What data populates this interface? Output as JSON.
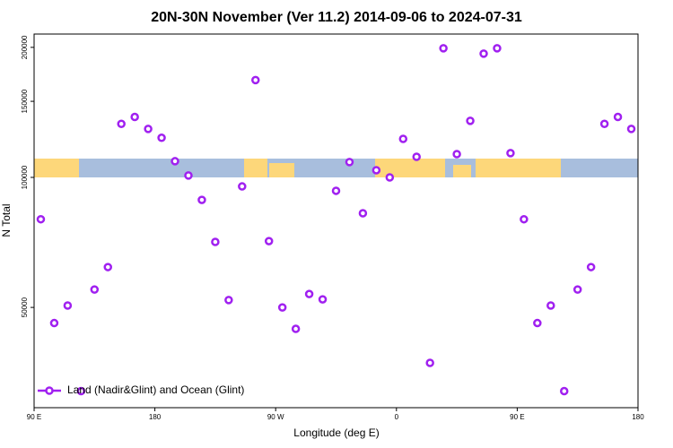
{
  "chart_data": {
    "type": "scatter",
    "title": "20N-30N November (Ver 11.2)   2014-09-06 to 2024-07-31",
    "x_label": "Longitude (deg E)",
    "y_label": "N Total",
    "x": [
      95,
      105,
      115,
      125,
      135,
      145,
      155,
      165,
      175,
      185,
      195,
      205,
      215,
      225,
      235,
      245,
      255,
      265,
      275,
      285,
      295,
      305,
      315,
      325,
      335,
      345,
      355,
      365,
      375,
      385,
      395,
      405,
      415,
      425,
      435,
      445,
      455,
      465,
      475,
      485,
      495,
      505,
      515,
      525,
      535
    ],
    "series": [
      {
        "name": "Land (Nadir&Glint) and Ocean (Glint)",
        "color": "#a020f0",
        "values": [
          80000,
          46000,
          50500,
          32000,
          55000,
          62000,
          133000,
          138000,
          129500,
          123500,
          109000,
          101000,
          88700,
          70900,
          52000,
          95300,
          168000,
          71200,
          50000,
          44600,
          53700,
          52200,
          93100,
          108500,
          82600,
          103900,
          100000,
          122800,
          111600,
          37200,
          199000,
          113200,
          135200,
          193400,
          199000,
          113800,
          80000,
          46000,
          50500,
          32000,
          55000,
          62000,
          133000,
          138000,
          129500
        ]
      }
    ],
    "xlim": [
      90,
      540
    ],
    "xticks": [
      {
        "value": 90,
        "label": "90 E"
      },
      {
        "value": 180,
        "label": "180"
      },
      {
        "value": 270,
        "label": "90 W"
      },
      {
        "value": 360,
        "label": "0"
      },
      {
        "value": 450,
        "label": "90 E"
      },
      {
        "value": 540,
        "label": "180"
      }
    ],
    "ylim": [
      29300,
      214700
    ],
    "yticks": [
      50000,
      100000,
      150000,
      200000
    ],
    "log_y": true,
    "grid": false,
    "legend": "bottom-left"
  }
}
